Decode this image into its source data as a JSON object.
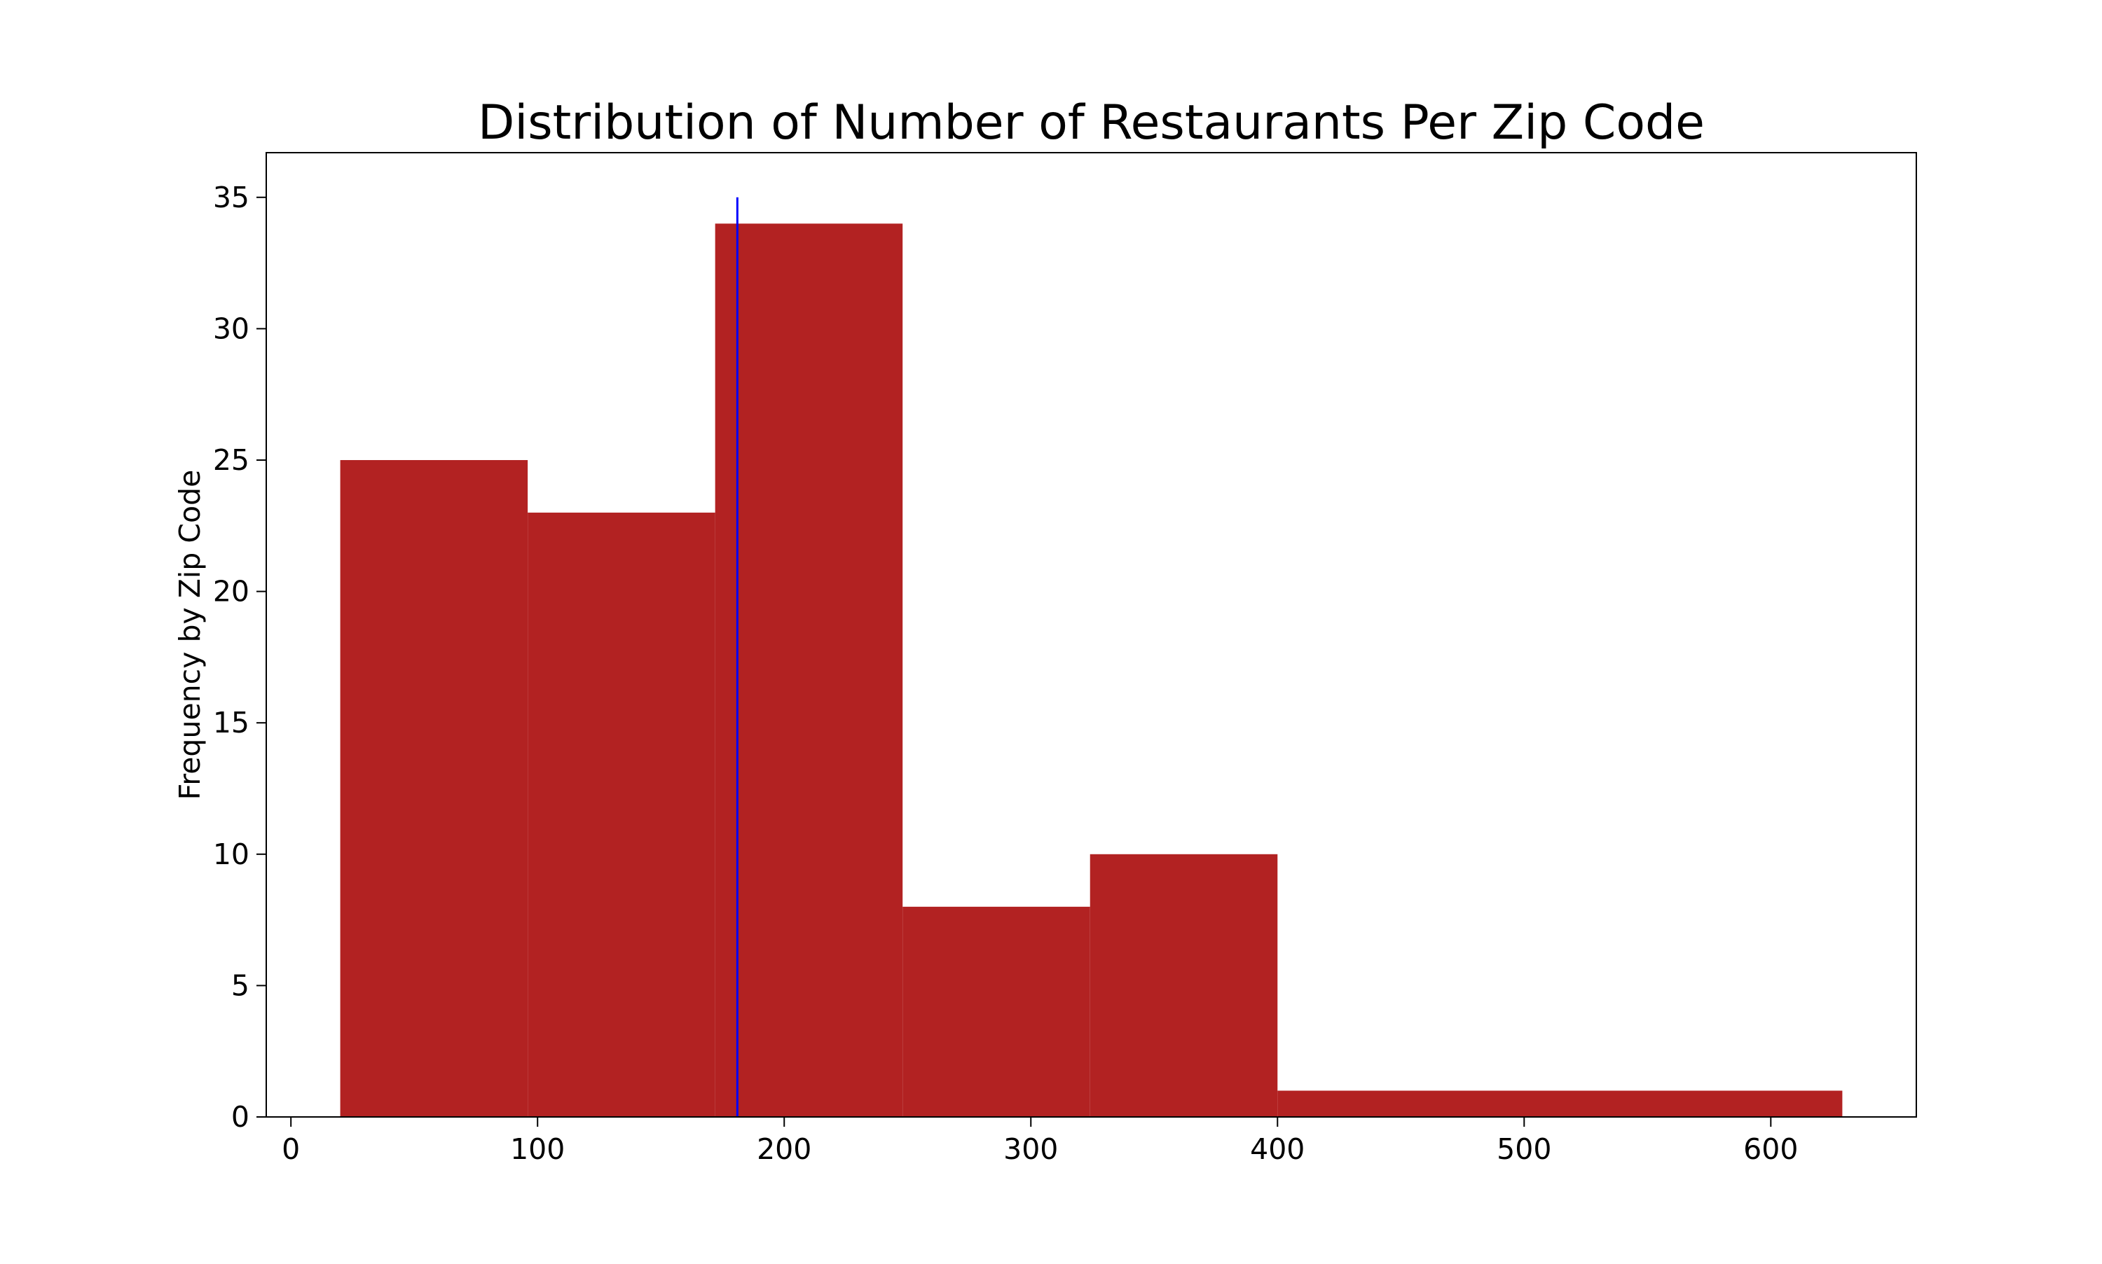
{
  "chart_data": {
    "type": "bar",
    "title": "Distribution of Number of Restaurants Per Zip Code",
    "xlabel": "",
    "ylabel": "Frequency by Zip Code",
    "xlim": [
      -10,
      659
    ],
    "ylim": [
      0,
      36.7
    ],
    "grid": false,
    "legend": "none",
    "bins": [
      {
        "x0": 20,
        "x1": 96,
        "value": 25
      },
      {
        "x0": 96,
        "x1": 172,
        "value": 23
      },
      {
        "x0": 172,
        "x1": 248,
        "value": 34
      },
      {
        "x0": 248,
        "x1": 324,
        "value": 8
      },
      {
        "x0": 324,
        "x1": 400,
        "value": 10
      },
      {
        "x0": 400,
        "x1": 629,
        "value": 1
      }
    ],
    "vline": {
      "x": 181,
      "y0": 0,
      "y1": 35
    },
    "x_ticks": [
      0,
      100,
      200,
      300,
      400,
      500,
      600
    ],
    "y_ticks": [
      0,
      5,
      10,
      15,
      20,
      25,
      30,
      35
    ],
    "colors": {
      "bar": "#b22222",
      "vline": "#0000ff",
      "axes": "#000000"
    }
  }
}
